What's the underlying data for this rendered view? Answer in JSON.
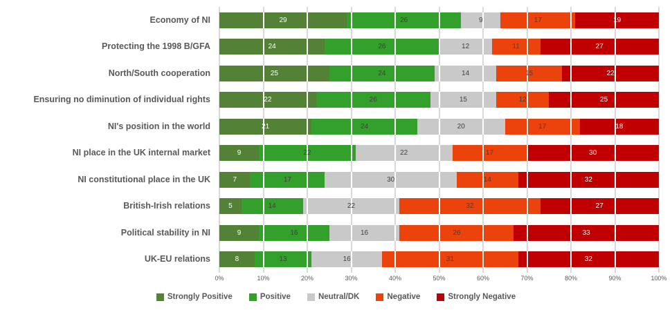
{
  "chart_data": {
    "type": "bar",
    "orientation": "horizontal",
    "stacked": true,
    "title": "",
    "xlabel": "",
    "ylabel": "",
    "xlim": [
      0,
      100
    ],
    "x_ticks": [
      "0%",
      "10%",
      "20%",
      "30%",
      "40%",
      "50%",
      "60%",
      "70%",
      "80%",
      "90%",
      "100%"
    ],
    "grid": true,
    "legend_position": "bottom",
    "categories": [
      "Economy of NI",
      "Protecting the 1998 B/GFA",
      "North/South cooperation",
      "Ensuring no diminution of individual rights",
      "NI's position in the world",
      "NI place in the UK internal market",
      "NI constitutional place in the UK",
      "British-Irish relations",
      "Political stability in NI",
      "UK-EU relations"
    ],
    "series": [
      {
        "name": "Strongly Positive",
        "color": "#538135",
        "label_color": "#FFFFFF",
        "values": [
          29,
          24,
          25,
          22,
          21,
          9,
          7,
          5,
          9,
          8
        ]
      },
      {
        "name": "Positive",
        "color": "#33A02C",
        "label_color": "#404040",
        "values": [
          26,
          26,
          24,
          26,
          24,
          22,
          17,
          14,
          16,
          13
        ]
      },
      {
        "name": "Neutral/DK",
        "color": "#C9C9C9",
        "label_color": "#404040",
        "values": [
          9,
          12,
          14,
          15,
          20,
          22,
          30,
          22,
          16,
          16
        ]
      },
      {
        "name": "Negative",
        "color": "#EC430D",
        "label_color": "#404040",
        "values": [
          17,
          11,
          15,
          12,
          17,
          17,
          14,
          32,
          26,
          31
        ]
      },
      {
        "name": "Strongly Negative",
        "color": "#C00000",
        "label_color": "#FFFFFF",
        "values": [
          19,
          27,
          22,
          25,
          18,
          30,
          32,
          27,
          33,
          32
        ]
      }
    ]
  },
  "colors": {
    "category_text": "#595959",
    "axis_text": "#595959",
    "gridline": "#D9D9D9",
    "gridline_over_bar": "#FFFFFF",
    "background": "#FFFFFF"
  }
}
